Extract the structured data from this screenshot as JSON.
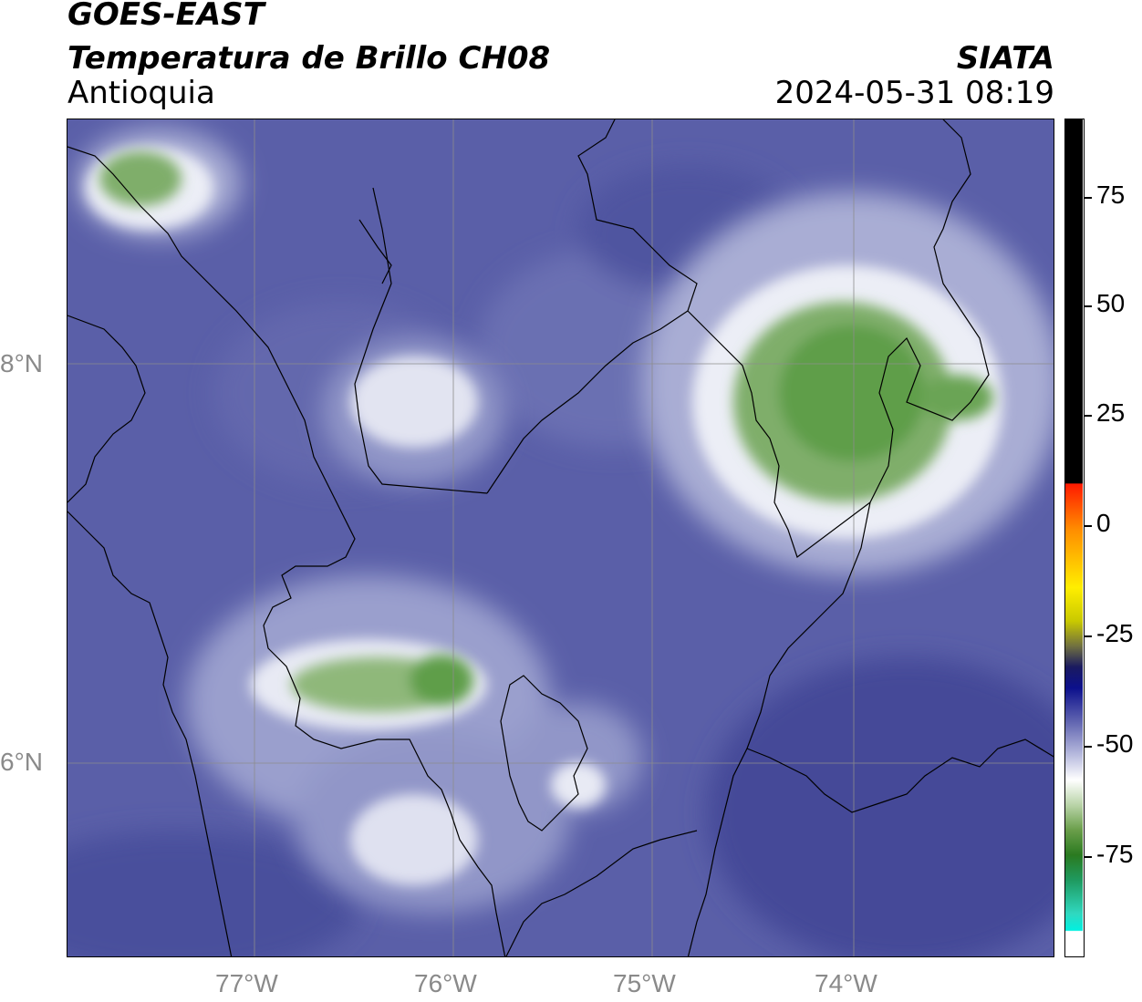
{
  "header": {
    "satellite": "GOES-EAST",
    "product": "Temperatura de Brillo CH08",
    "region": "Antioquia",
    "agency": "SIATA",
    "datetime": "2024-05-31 08:19"
  },
  "map": {
    "lat_labels": [
      "8°N",
      "6°N"
    ],
    "lon_labels": [
      "77°W",
      "76°W",
      "75°W",
      "74°W"
    ],
    "colors": {
      "background": "#5a5fa8",
      "land_dark": "#454a98",
      "cloud_light": "#e8eaf4",
      "cloud_mid": "#a9add4",
      "cold_core": "#5f9e4a",
      "border": "#000000",
      "grid": "#8c8c8c"
    }
  },
  "colorbar": {
    "ticks": [
      "75",
      "50",
      "25",
      "0",
      "-25",
      "-50",
      "-75"
    ]
  }
}
